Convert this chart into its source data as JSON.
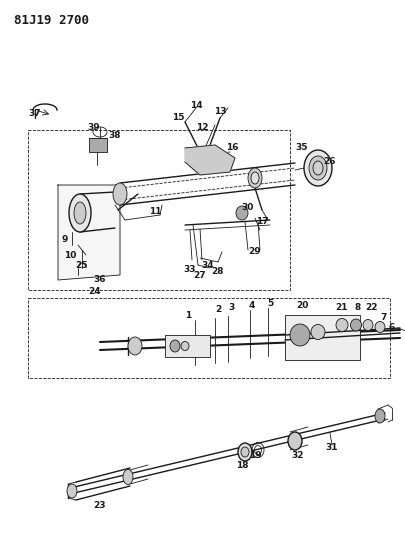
{
  "title": "81J19 2700",
  "bg_color": "#ffffff",
  "line_color": "#1a1a1a",
  "gray_light": "#cccccc",
  "gray_mid": "#aaaaaa",
  "gray_dark": "#888888"
}
